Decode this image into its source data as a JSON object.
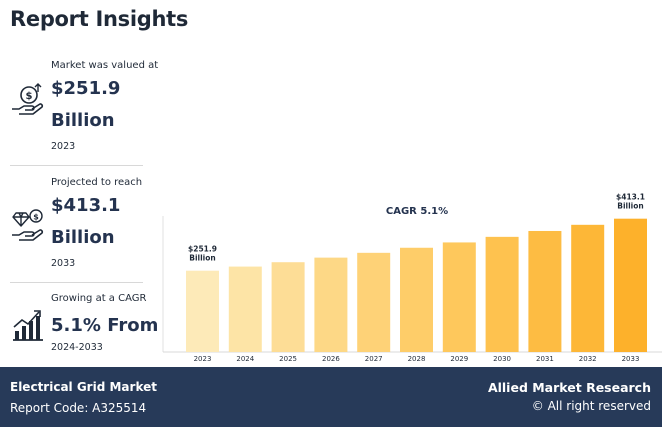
{
  "title": "Report Insights",
  "stats": [
    {
      "caption": "Market was valued at",
      "value_line1": "$251.9",
      "value_line2": "Billion",
      "period": "2023",
      "icon": "money-hand-icon"
    },
    {
      "caption": "Projected to reach",
      "value_line1": "$413.1",
      "value_line2": "Billion",
      "period": "2033",
      "icon": "diamond-hand-icon"
    },
    {
      "caption": "Growing at a CAGR",
      "value_line1": "5.1% From",
      "period": "2024-2033",
      "icon": "growth-chart-icon"
    }
  ],
  "chart_data": {
    "type": "bar",
    "title": "CAGR 5.1%",
    "categories": [
      "2023",
      "2024",
      "2025",
      "2026",
      "2027",
      "2028",
      "2029",
      "2030",
      "2031",
      "2032",
      "2033"
    ],
    "values": [
      251.9,
      264.7,
      278.2,
      292.4,
      307.3,
      323.0,
      339.5,
      356.8,
      375.0,
      394.1,
      413.1
    ],
    "ylim": [
      0,
      440
    ],
    "annotations": [
      {
        "index": 0,
        "lines": [
          "$251.9",
          "Billion"
        ]
      },
      {
        "index": 10,
        "lines": [
          "$413.1",
          "Billion"
        ]
      }
    ],
    "colors": [
      "#fdeab8",
      "#fde4a6",
      "#fddd96",
      "#fdd886",
      "#fed277",
      "#fecd69",
      "#fec85c",
      "#fec24f",
      "#fdbc43",
      "#fdb737",
      "#fdb12b"
    ],
    "grid": false,
    "xlabel": "",
    "ylabel": ""
  },
  "footer": {
    "market_name": "Electrical Grid Market",
    "report_code": "Report Code: A325514",
    "brand": "Allied Market Research",
    "rights": "© All right reserved"
  }
}
